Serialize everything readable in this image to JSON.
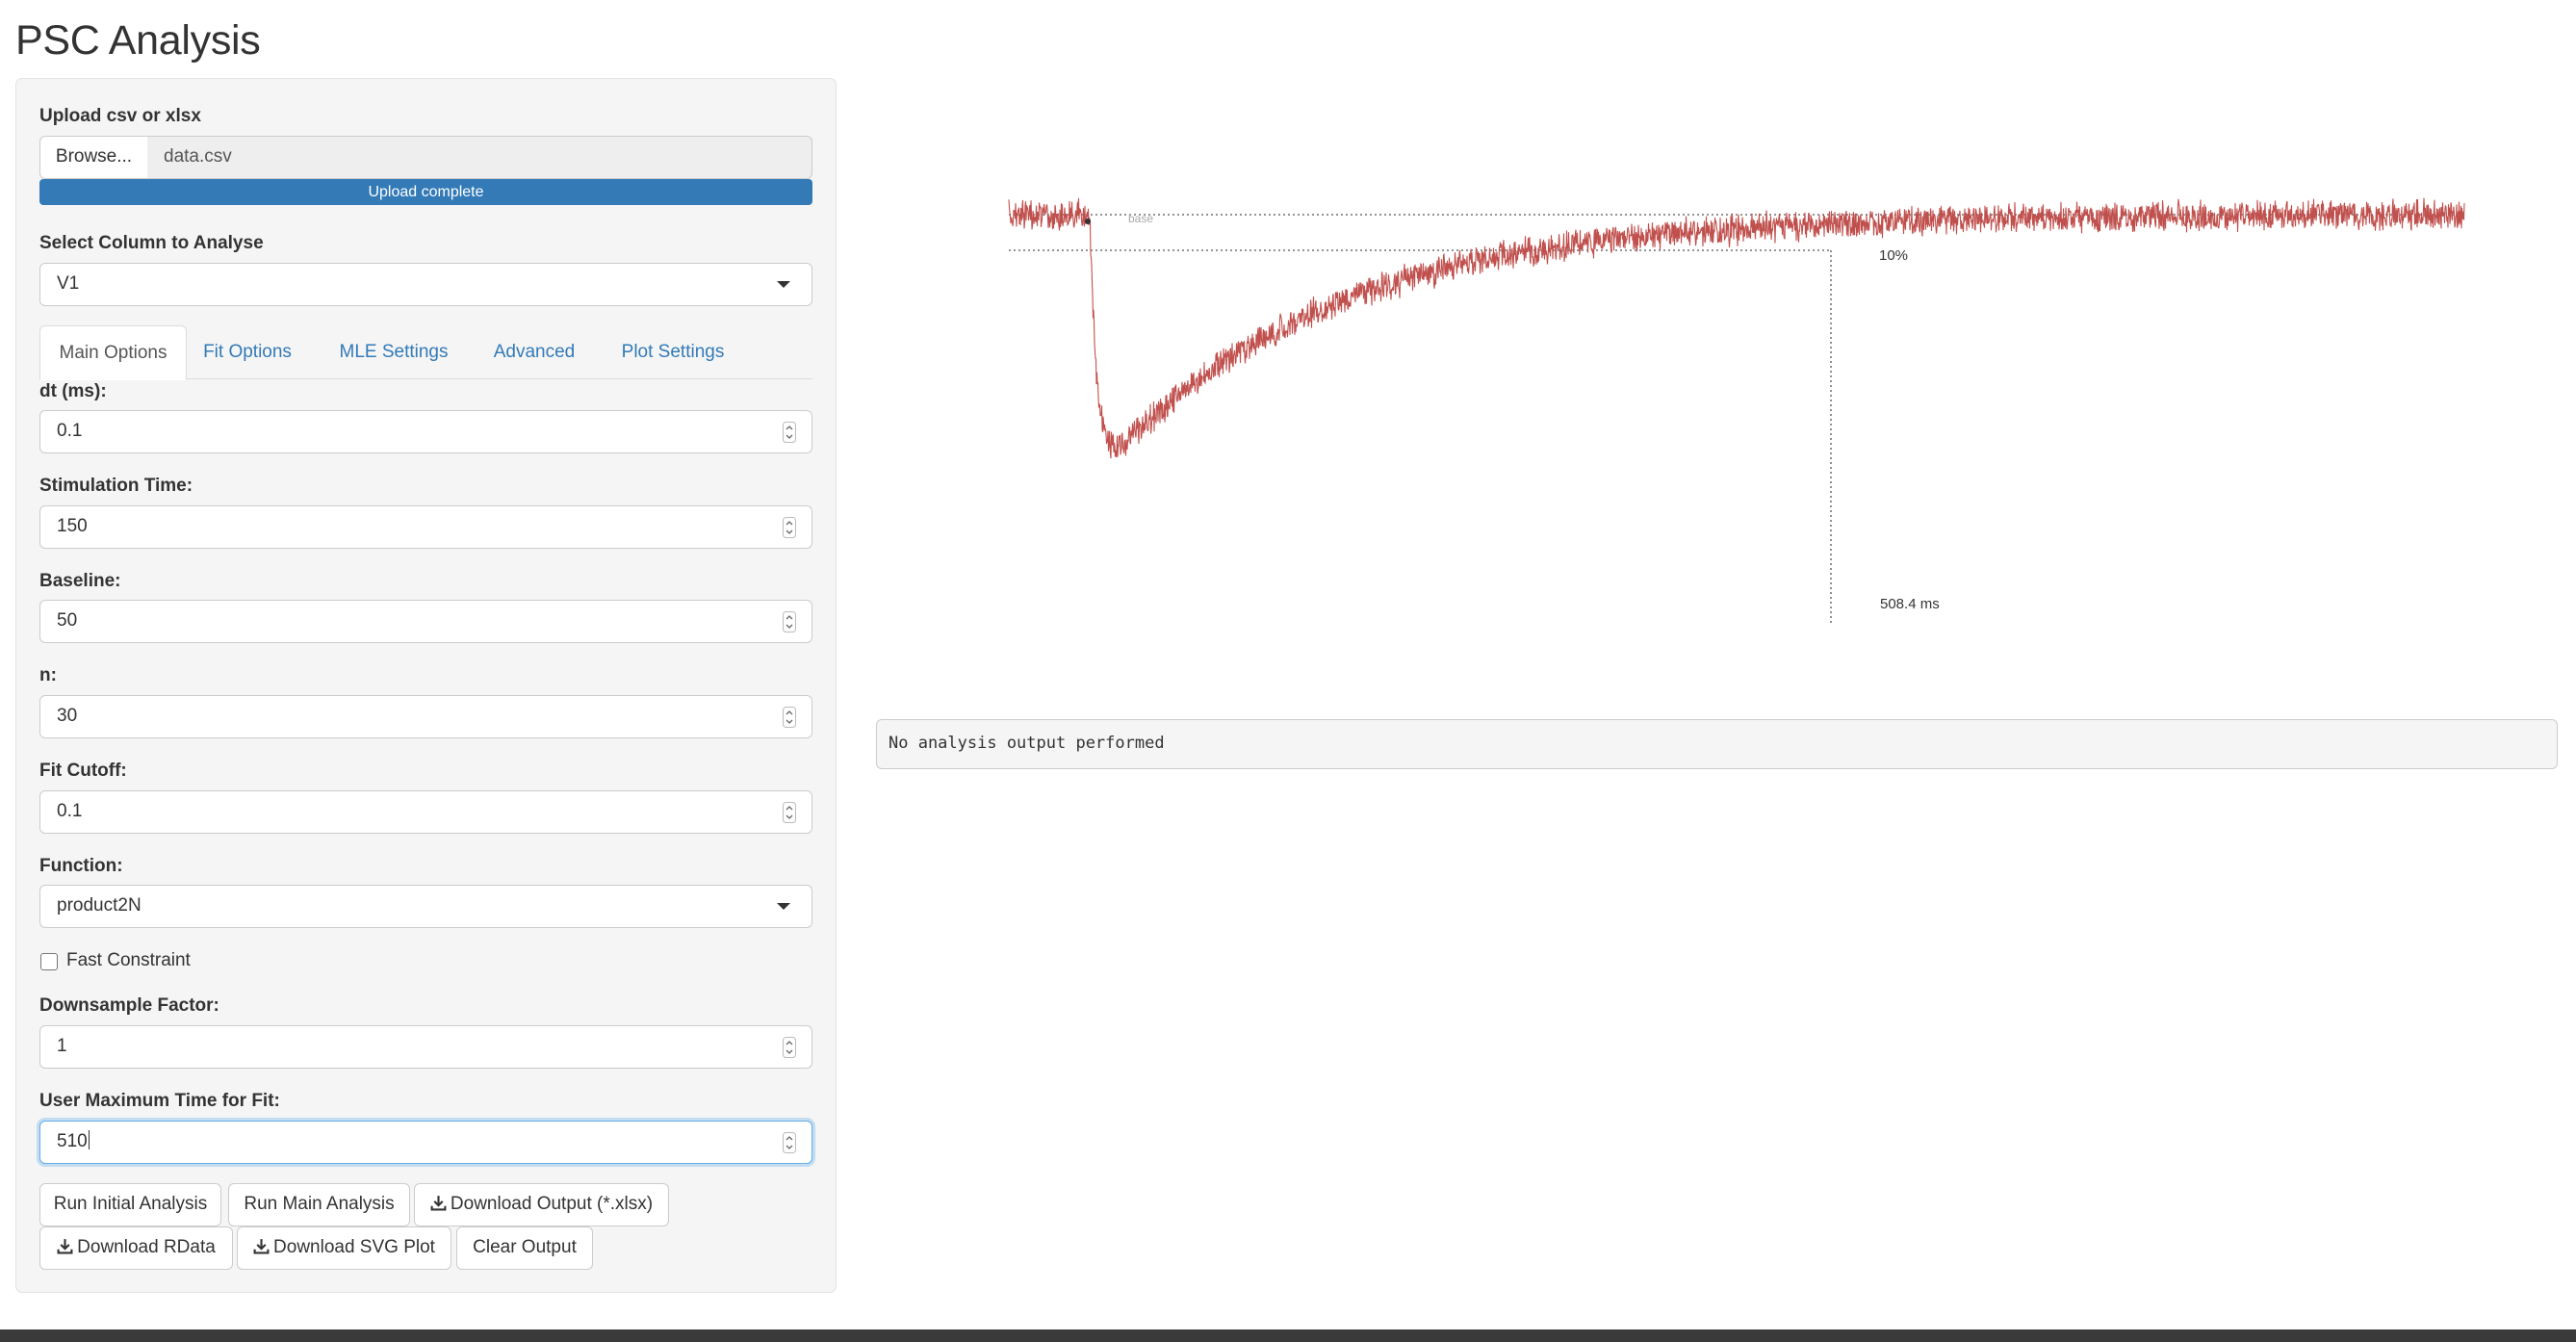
{
  "page": {
    "title": "PSC Analysis"
  },
  "upload": {
    "label": "Upload csv or xlsx",
    "browse_label": "Browse...",
    "file_name": "data.csv",
    "progress_text": "Upload complete",
    "progress_fraction": 1.0
  },
  "column_select": {
    "label": "Select Column to Analyse",
    "value": "V1"
  },
  "tabs": [
    {
      "label": "Main Options",
      "active": true
    },
    {
      "label": "Fit Options",
      "active": false
    },
    {
      "label": "MLE Settings",
      "active": false
    },
    {
      "label": "Advanced",
      "active": false
    },
    {
      "label": "Plot Settings",
      "active": false
    }
  ],
  "fields": {
    "dt": {
      "label": "dt (ms):",
      "value": "0.1"
    },
    "stim_time": {
      "label": "Stimulation Time:",
      "value": "150"
    },
    "baseline": {
      "label": "Baseline:",
      "value": "50"
    },
    "n": {
      "label": "n:",
      "value": "30"
    },
    "fit_cutoff": {
      "label": "Fit Cutoff:",
      "value": "0.1"
    },
    "function": {
      "label": "Function:",
      "value": "product2N"
    },
    "fast_constraint": {
      "label": "Fast Constraint",
      "checked": false
    },
    "downsample": {
      "label": "Downsample Factor:",
      "value": "1"
    },
    "user_max_time": {
      "label": "User Maximum Time for Fit:",
      "value": "510"
    }
  },
  "buttons": {
    "run_initial": "Run Initial Analysis",
    "run_main": "Run Main Analysis",
    "download_output": "Download Output (*.xlsx)",
    "download_rdata": "Download RData",
    "download_svg": "Download SVG Plot",
    "clear_output": "Clear Output"
  },
  "plot": {
    "trace_color": "#c0504d",
    "annotations": {
      "baseline_label": "base",
      "pct_label": "10%",
      "time_label": "508.4 ms"
    }
  },
  "output": {
    "text": "No analysis output performed"
  }
}
